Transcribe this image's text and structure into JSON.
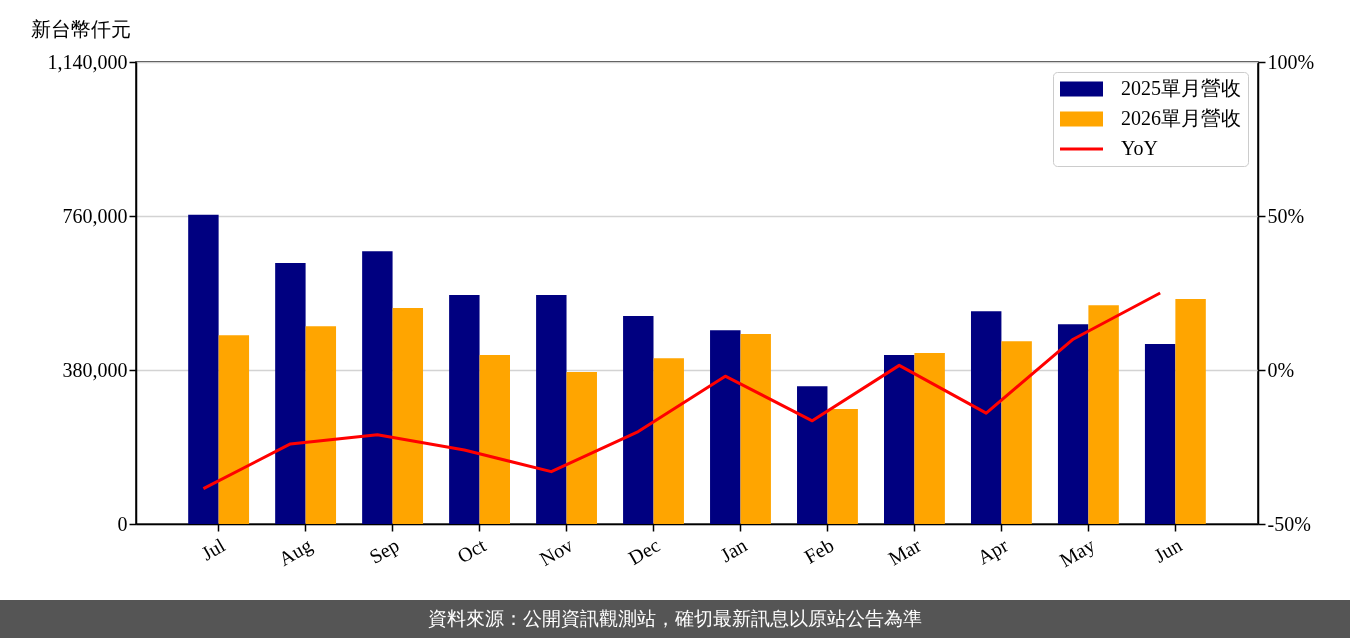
{
  "chart_data": {
    "type": "bar",
    "ylabel": "新台幣仟元",
    "categories": [
      "Jul",
      "Aug",
      "Sep",
      "Oct",
      "Nov",
      "Dec",
      "Jan",
      "Feb",
      "Mar",
      "Apr",
      "May",
      "Jun"
    ],
    "series": [
      {
        "name": "2025單月營收",
        "color": "#000080",
        "values": [
          763000,
          644000,
          673000,
          565000,
          565000,
          513000,
          478000,
          340000,
          417000,
          525000,
          493000,
          444000
        ]
      },
      {
        "name": "2026單月營收",
        "color": "#ffa500",
        "values": [
          466000,
          488000,
          533000,
          417000,
          375000,
          409000,
          469000,
          284000,
          422000,
          451000,
          540000,
          555000
        ]
      },
      {
        "name": "YoY",
        "type": "line",
        "axis": "y2",
        "color": "#ff0000",
        "values": [
          -38.5,
          -24,
          -21,
          -26,
          -33,
          -20,
          -2,
          -16.5,
          1.5,
          -14,
          10,
          25
        ]
      }
    ],
    "ylim": [
      0,
      1140000
    ],
    "yticks": [
      {
        "value": 0,
        "label": "0"
      },
      {
        "value": 380000,
        "label": "380,000"
      },
      {
        "value": 760000,
        "label": "760,000"
      },
      {
        "value": 1140000,
        "label": "1,140,000"
      }
    ],
    "y2lim": [
      -50,
      100
    ],
    "y2ticks": [
      {
        "value": -50,
        "label": "-50%"
      },
      {
        "value": 0,
        "label": "0%"
      },
      {
        "value": 50,
        "label": "50%"
      },
      {
        "value": 100,
        "label": "100%"
      }
    ],
    "grid": "y",
    "legend": "top right",
    "annotations": [
      "資料來源：公開資訊觀測站，確切最新訊息以原站公告為準"
    ]
  }
}
